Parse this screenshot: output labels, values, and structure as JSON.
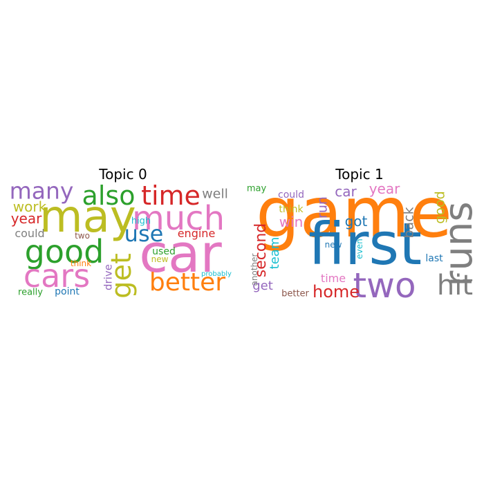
{
  "chart_data": [
    {
      "type": "wordcloud",
      "title": "Topic 0",
      "words": [
        {
          "text": "car",
          "weight": 76,
          "color": "#e377c2",
          "orientation": "horizontal"
        },
        {
          "text": "may",
          "weight": 64,
          "color": "#bcbd22",
          "orientation": "horizontal"
        },
        {
          "text": "much",
          "weight": 48,
          "color": "#e377c2",
          "orientation": "horizontal"
        },
        {
          "text": "good",
          "weight": 46,
          "color": "#2ca02c",
          "orientation": "horizontal"
        },
        {
          "text": "cars",
          "weight": 46,
          "color": "#e377c2",
          "orientation": "horizontal"
        },
        {
          "text": "get",
          "weight": 40,
          "color": "#bcbd22",
          "orientation": "vertical"
        },
        {
          "text": "time",
          "weight": 38,
          "color": "#d62728",
          "orientation": "horizontal"
        },
        {
          "text": "also",
          "weight": 38,
          "color": "#2ca02c",
          "orientation": "horizontal"
        },
        {
          "text": "better",
          "weight": 36,
          "color": "#ff7f0e",
          "orientation": "horizontal"
        },
        {
          "text": "many",
          "weight": 33,
          "color": "#9467bd",
          "orientation": "horizontal"
        },
        {
          "text": "use",
          "weight": 32,
          "color": "#1f77b4",
          "orientation": "horizontal"
        },
        {
          "text": "work",
          "weight": 20,
          "color": "#bcbd22",
          "orientation": "horizontal"
        },
        {
          "text": "year",
          "weight": 20,
          "color": "#d62728",
          "orientation": "horizontal"
        },
        {
          "text": "well",
          "weight": 19,
          "color": "#7f7f7f",
          "orientation": "horizontal"
        },
        {
          "text": "could",
          "weight": 16,
          "color": "#7f7f7f",
          "orientation": "horizontal"
        },
        {
          "text": "engine",
          "weight": 16,
          "color": "#d62728",
          "orientation": "horizontal"
        },
        {
          "text": "drive",
          "weight": 15,
          "color": "#9467bd",
          "orientation": "vertical"
        },
        {
          "text": "used",
          "weight": 14,
          "color": "#2ca02c",
          "orientation": "horizontal"
        },
        {
          "text": "point",
          "weight": 14,
          "color": "#1f77b4",
          "orientation": "horizontal"
        },
        {
          "text": "really",
          "weight": 13,
          "color": "#2ca02c",
          "orientation": "horizontal"
        },
        {
          "text": "high",
          "weight": 13,
          "color": "#17becf",
          "orientation": "horizontal"
        },
        {
          "text": "two",
          "weight": 12,
          "color": "#8c564b",
          "orientation": "horizontal"
        },
        {
          "text": "new",
          "weight": 12,
          "color": "#bcbd22",
          "orientation": "horizontal"
        },
        {
          "text": "think",
          "weight": 12,
          "color": "#ff7f0e",
          "orientation": "horizontal"
        },
        {
          "text": "probably",
          "weight": 10,
          "color": "#17becf",
          "orientation": "horizontal"
        }
      ]
    },
    {
      "type": "wordcloud",
      "title": "Topic 1",
      "words": [
        {
          "text": "game",
          "weight": 100,
          "color": "#ff7f0e",
          "orientation": "horizontal"
        },
        {
          "text": "first",
          "weight": 84,
          "color": "#1f77b4",
          "orientation": "horizontal"
        },
        {
          "text": "runs",
          "weight": 56,
          "color": "#7f7f7f",
          "orientation": "vertical"
        },
        {
          "text": "two",
          "weight": 50,
          "color": "#9467bd",
          "orientation": "horizontal"
        },
        {
          "text": "hit",
          "weight": 40,
          "color": "#7f7f7f",
          "orientation": "horizontal"
        },
        {
          "text": "home",
          "weight": 24,
          "color": "#d62728",
          "orientation": "horizontal"
        },
        {
          "text": "second",
          "weight": 22,
          "color": "#d62728",
          "orientation": "vertical"
        },
        {
          "text": "year",
          "weight": 20,
          "color": "#e377c2",
          "orientation": "horizontal"
        },
        {
          "text": "car",
          "weight": 20,
          "color": "#9467bd",
          "orientation": "horizontal"
        },
        {
          "text": "win",
          "weight": 20,
          "color": "#e377c2",
          "orientation": "horizontal"
        },
        {
          "text": "got",
          "weight": 20,
          "color": "#1f77b4",
          "orientation": "horizontal"
        },
        {
          "text": "run",
          "weight": 19,
          "color": "#9467bd",
          "orientation": "vertical"
        },
        {
          "text": "back",
          "weight": 19,
          "color": "#7f7f7f",
          "orientation": "vertical"
        },
        {
          "text": "good",
          "weight": 19,
          "color": "#bcbd22",
          "orientation": "vertical"
        },
        {
          "text": "team",
          "weight": 18,
          "color": "#17becf",
          "orientation": "vertical"
        },
        {
          "text": "get",
          "weight": 18,
          "color": "#9467bd",
          "orientation": "horizontal"
        },
        {
          "text": "time",
          "weight": 16,
          "color": "#e377c2",
          "orientation": "horizontal"
        },
        {
          "text": "last",
          "weight": 14,
          "color": "#1f77b4",
          "orientation": "horizontal"
        },
        {
          "text": "could",
          "weight": 14,
          "color": "#9467bd",
          "orientation": "horizontal"
        },
        {
          "text": "think",
          "weight": 14,
          "color": "#bcbd22",
          "orientation": "horizontal"
        },
        {
          "text": "better",
          "weight": 13,
          "color": "#8c564b",
          "orientation": "horizontal"
        },
        {
          "text": "may",
          "weight": 13,
          "color": "#2ca02c",
          "orientation": "horizontal"
        },
        {
          "text": "another",
          "weight": 12,
          "color": "#7f7f7f",
          "orientation": "vertical"
        },
        {
          "text": "even",
          "weight": 12,
          "color": "#17becf",
          "orientation": "vertical"
        },
        {
          "text": "new",
          "weight": 12,
          "color": "#1f77b4",
          "orientation": "horizontal"
        }
      ]
    }
  ]
}
